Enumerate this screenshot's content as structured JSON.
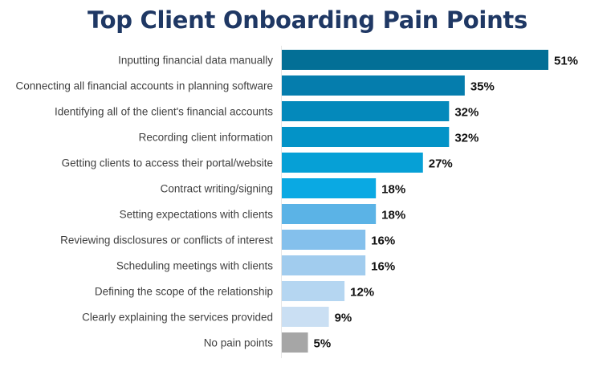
{
  "chart_data": {
    "type": "bar",
    "orientation": "horizontal",
    "title": "Top Client Onboarding Pain Points",
    "categories": [
      "Inputting financial data manually",
      "Connecting all financial accounts in planning software",
      "Identifying all of the client's financial accounts",
      "Recording client information",
      "Getting clients to access their portal/website",
      "Contract writing/signing",
      "Setting expectations with clients",
      "Reviewing disclosures or conflicts of interest",
      "Scheduling meetings with clients",
      "Defining the scope of the relationship",
      "Clearly explaining the services provided",
      "No pain points"
    ],
    "values": [
      51,
      35,
      32,
      32,
      27,
      18,
      18,
      16,
      16,
      12,
      9,
      5
    ],
    "value_labels": [
      "51%",
      "35%",
      "32%",
      "32%",
      "27%",
      "18%",
      "18%",
      "16%",
      "16%",
      "12%",
      "9%",
      "5%"
    ],
    "colors": [
      "#036F96",
      "#057DAD",
      "#0489BB",
      "#0393C7",
      "#06A0D6",
      "#0AA9E3",
      "#5BB3E6",
      "#84C0EC",
      "#A1CCEE",
      "#B5D6F1",
      "#CADFF3",
      "#A6A6A6"
    ],
    "xlim": [
      0,
      51
    ],
    "unit": "%",
    "grid": false,
    "legend": "none"
  }
}
